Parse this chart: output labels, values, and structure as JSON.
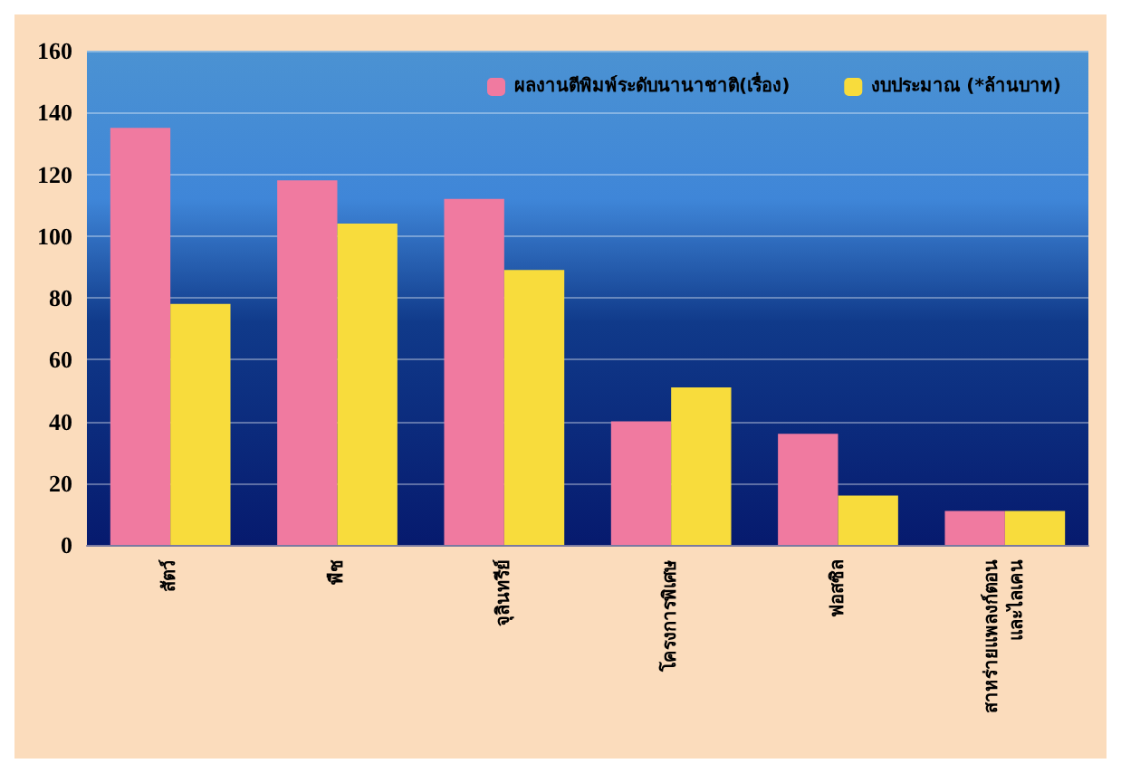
{
  "chart_data": {
    "type": "bar",
    "categories": [
      "สัตว์",
      "พืช",
      "จุลินทรีย์",
      "โครงการพิเศษ",
      "ฟอสซิล",
      "สาหร่ายแพลงก์ตอน\nและไลเคน"
    ],
    "series": [
      {
        "name": "ผลงานตีพิมพ์ระดับนานาชาติ(เรื่อง)",
        "color": "#f07aa0",
        "values": [
          135,
          118,
          112,
          40,
          36,
          11
        ]
      },
      {
        "name": "งบประมาณ (*ล้านบาท)",
        "color": "#f8dc3c",
        "values": [
          78,
          104,
          89,
          51,
          16,
          11
        ]
      }
    ],
    "ylim": [
      0,
      160
    ],
    "yticks": [
      0,
      20,
      40,
      60,
      80,
      100,
      120,
      140,
      160
    ],
    "grid": "y",
    "legend": "top right"
  }
}
